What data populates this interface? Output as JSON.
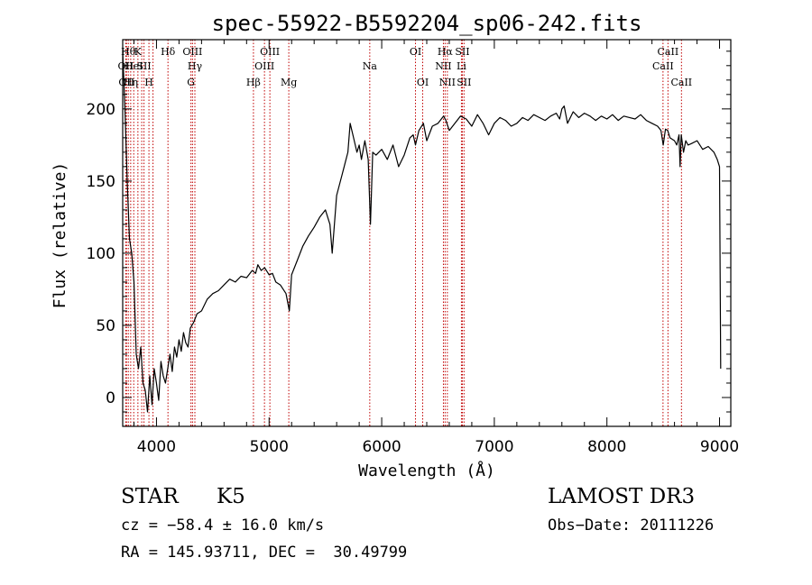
{
  "chart_data": {
    "type": "line",
    "title": "spec-55922-B5592204_sp06-242.fits",
    "xlabel": "Wavelength (Å)",
    "ylabel": "Flux (relative)",
    "xlim": [
      3700,
      9100
    ],
    "ylim": [
      -20,
      248
    ],
    "x_ticks": [
      4000,
      5000,
      6000,
      7000,
      8000,
      9000
    ],
    "y_ticks": [
      0,
      50,
      100,
      150,
      200
    ],
    "grid": false,
    "series": [
      {
        "x": [
          3700,
          3720,
          3740,
          3760,
          3780,
          3800,
          3820,
          3840,
          3860,
          3880,
          3900,
          3920,
          3940,
          3960,
          3980,
          4000,
          4020,
          4040,
          4060,
          4080,
          4100,
          4120,
          4140,
          4160,
          4180,
          4200,
          4220,
          4240,
          4260,
          4280,
          4300,
          4330,
          4360,
          4400,
          4450,
          4500,
          4550,
          4600,
          4650,
          4700,
          4750,
          4800,
          4850,
          4880,
          4900,
          4930,
          4960,
          5000,
          5030,
          5060,
          5100,
          5150,
          5180,
          5200,
          5250,
          5300,
          5350,
          5400,
          5450,
          5500,
          5540,
          5560,
          5600,
          5650,
          5700,
          5720,
          5750,
          5780,
          5800,
          5820,
          5850,
          5880,
          5900,
          5920,
          5950,
          6000,
          6050,
          6100,
          6150,
          6200,
          6250,
          6280,
          6300,
          6330,
          6370,
          6400,
          6450,
          6500,
          6550,
          6570,
          6600,
          6650,
          6700,
          6750,
          6800,
          6850,
          6900,
          6950,
          7000,
          7050,
          7100,
          7150,
          7200,
          7250,
          7300,
          7350,
          7400,
          7450,
          7500,
          7550,
          7580,
          7600,
          7620,
          7650,
          7700,
          7750,
          7800,
          7850,
          7900,
          7950,
          8000,
          8050,
          8100,
          8150,
          8200,
          8250,
          8300,
          8350,
          8400,
          8450,
          8480,
          8500,
          8520,
          8540,
          8560,
          8600,
          8620,
          8640,
          8650,
          8660,
          8680,
          8700,
          8720,
          8750,
          8800,
          8850,
          8900,
          8950,
          8980,
          9000,
          9010
        ],
        "y": [
          240,
          200,
          150,
          110,
          100,
          80,
          30,
          20,
          35,
          10,
          5,
          -10,
          15,
          -5,
          20,
          10,
          -2,
          25,
          15,
          10,
          20,
          30,
          18,
          35,
          28,
          40,
          32,
          45,
          38,
          35,
          48,
          52,
          58,
          60,
          68,
          72,
          74,
          78,
          82,
          80,
          84,
          83,
          88,
          86,
          92,
          88,
          90,
          85,
          86,
          80,
          78,
          72,
          60,
          85,
          95,
          105,
          112,
          118,
          125,
          130,
          120,
          100,
          140,
          155,
          170,
          190,
          180,
          170,
          175,
          165,
          178,
          165,
          120,
          170,
          168,
          172,
          165,
          175,
          160,
          168,
          180,
          182,
          175,
          185,
          190,
          178,
          188,
          190,
          195,
          192,
          185,
          190,
          195,
          193,
          188,
          196,
          190,
          182,
          190,
          194,
          192,
          188,
          190,
          194,
          192,
          196,
          194,
          192,
          195,
          197,
          193,
          200,
          202,
          190,
          198,
          194,
          197,
          195,
          192,
          195,
          193,
          196,
          192,
          195,
          194,
          193,
          196,
          192,
          190,
          188,
          185,
          175,
          186,
          185,
          180,
          178,
          175,
          182,
          160,
          182,
          170,
          178,
          175,
          176,
          178,
          172,
          174,
          170,
          165,
          160,
          20
        ]
      }
    ],
    "lines": [
      {
        "wavelength": 3727,
        "label": "OII",
        "row": 2
      },
      {
        "wavelength": 3734,
        "label": "OII",
        "row": 3
      },
      {
        "wavelength": 3750,
        "label": "Hθ",
        "row": 1
      },
      {
        "wavelength": 3771,
        "label": "Hη",
        "row": 3
      },
      {
        "wavelength": 3798,
        "label": "HeI",
        "row": 2
      },
      {
        "wavelength": 3835,
        "label": "K",
        "row": 1
      },
      {
        "wavelength": 3869,
        "label": "",
        "row": 0
      },
      {
        "wavelength": 3889,
        "label": "SII",
        "row": 2
      },
      {
        "wavelength": 3933,
        "label": "H",
        "row": 3
      },
      {
        "wavelength": 3969,
        "label": "",
        "row": 0
      },
      {
        "wavelength": 4102,
        "label": "Hδ",
        "row": 1
      },
      {
        "wavelength": 4306,
        "label": "G",
        "row": 3
      },
      {
        "wavelength": 4320,
        "label": "OIII",
        "row": 1
      },
      {
        "wavelength": 4341,
        "label": "Hγ",
        "row": 2
      },
      {
        "wavelength": 4861,
        "label": "Hβ",
        "row": 3
      },
      {
        "wavelength": 4959,
        "label": "OIII",
        "row": 2
      },
      {
        "wavelength": 5007,
        "label": "OIII",
        "row": 1
      },
      {
        "wavelength": 5175,
        "label": "Mg",
        "row": 3
      },
      {
        "wavelength": 5894,
        "label": "Na",
        "row": 2
      },
      {
        "wavelength": 6300,
        "label": "OI",
        "row": 1
      },
      {
        "wavelength": 6364,
        "label": "OI",
        "row": 3
      },
      {
        "wavelength": 6548,
        "label": "NII",
        "row": 2
      },
      {
        "wavelength": 6563,
        "label": "Hα",
        "row": 1
      },
      {
        "wavelength": 6583,
        "label": "NII",
        "row": 3
      },
      {
        "wavelength": 6708,
        "label": "Li",
        "row": 2
      },
      {
        "wavelength": 6716,
        "label": "SII",
        "row": 1
      },
      {
        "wavelength": 6731,
        "label": "SII",
        "row": 3
      },
      {
        "wavelength": 8498,
        "label": "CaII",
        "row": 2
      },
      {
        "wavelength": 8542,
        "label": "CaII",
        "row": 1
      },
      {
        "wavelength": 8662,
        "label": "CaII",
        "row": 3
      }
    ]
  },
  "info": {
    "class": "STAR",
    "subclass": "K5",
    "survey": "LAMOST DR3",
    "cz": "cz = −58.4 ± 16.0 km/s",
    "obs_date": "Obs−Date: 20111226",
    "coords": "RA = 145.93711, DEC =  30.49799"
  }
}
